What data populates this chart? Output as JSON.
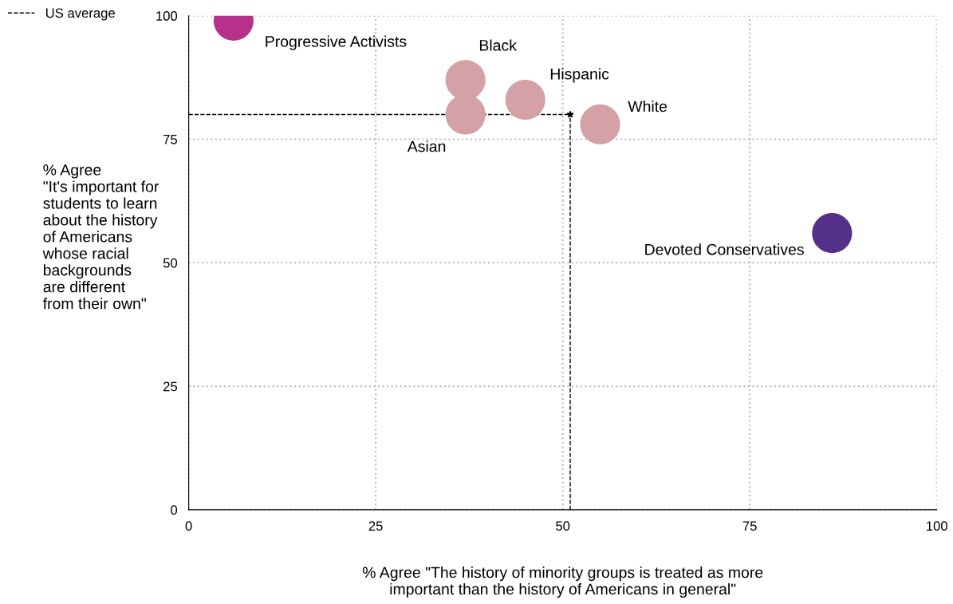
{
  "chart_data": {
    "type": "scatter",
    "xlabel": "% Agree \"The history of minority groups is treated as more\nimportant than the history of Americans in general\"",
    "ylabel": "% Agree\n\"It's important for\nstudents to learn\nabout the history\nof Americans\nwhose racial\nbackgrounds\nare different\nfrom their own\"",
    "series": [
      {
        "name": "Progressive Activists",
        "color": "#b5318a",
        "x": [
          6
        ],
        "values": [
          99
        ]
      },
      {
        "name": "Black",
        "color": "#d4a1a6",
        "x": [
          37
        ],
        "values": [
          87
        ]
      },
      {
        "name": "Asian",
        "color": "#d4a1a6",
        "x": [
          37
        ],
        "values": [
          80
        ]
      },
      {
        "name": "Hispanic",
        "color": "#d4a1a6",
        "x": [
          45
        ],
        "values": [
          83
        ]
      },
      {
        "name": "White",
        "color": "#d4a1a6",
        "x": [
          55
        ],
        "values": [
          78
        ]
      },
      {
        "name": "Devoted Conservatives",
        "color": "#553089",
        "x": [
          86
        ],
        "values": [
          56
        ]
      }
    ],
    "ref_lines": [
      {
        "axis": "x",
        "value": 51,
        "label": "US average",
        "line_style": "dashed",
        "color": "#000000"
      },
      {
        "axis": "y",
        "value": 80,
        "label": null,
        "line_style": "dashed",
        "color": "#000000"
      }
    ],
    "xlim": [
      0,
      100
    ],
    "ylim": [
      0,
      100
    ],
    "xticks": [
      0,
      25,
      50,
      75,
      100
    ],
    "yticks": [
      0,
      25,
      50,
      75,
      100
    ],
    "grid": true,
    "marker": "circle",
    "legend": "top left"
  }
}
